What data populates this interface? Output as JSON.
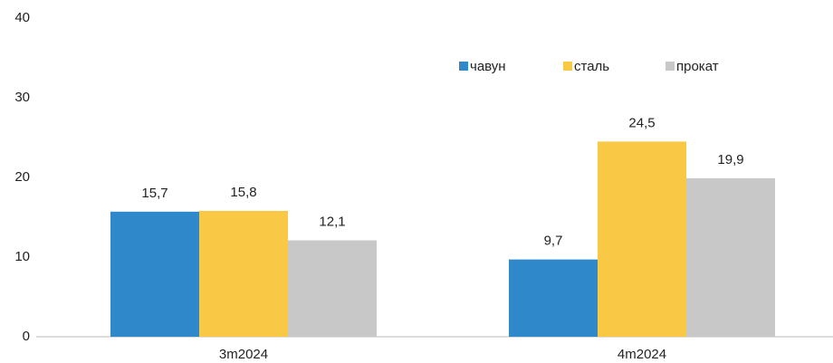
{
  "chart_data": {
    "type": "bar",
    "categories": [
      "3m2024",
      "4m2024"
    ],
    "series": [
      {
        "name": "чавун",
        "color": "#2f88c9",
        "values": [
          15.7,
          9.7
        ],
        "value_labels": [
          "15,7",
          "9,7"
        ]
      },
      {
        "name": "сталь",
        "color": "#f9c945",
        "values": [
          15.8,
          24.5
        ],
        "value_labels": [
          "15,8",
          "24,5"
        ]
      },
      {
        "name": "прокат",
        "color": "#c8c8c8",
        "values": [
          12.1,
          19.9
        ],
        "value_labels": [
          "12,1",
          "19,9"
        ]
      }
    ],
    "ylim": [
      0,
      40
    ],
    "yticks": [
      0,
      10,
      20,
      30,
      40
    ],
    "grid": false,
    "legend": "top-right"
  }
}
